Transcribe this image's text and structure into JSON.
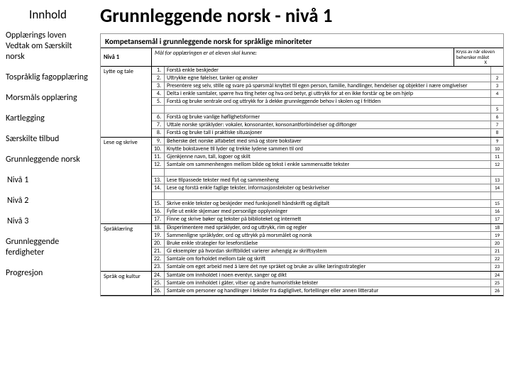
{
  "sidebar": {
    "title": "Innhold",
    "items": [
      "Opplærings loven",
      "Vedtak om Særskilt norsk",
      "Tospråklig fagopplæring",
      "Morsmåls opplæring",
      "Kartlegging",
      "Særskilte tilbud",
      "Grunnleggende norsk",
      "Nivå 1",
      "Nivå 2",
      "Nivå 3",
      "Grunnleggende ferdigheter",
      "Progresjon"
    ]
  },
  "main": {
    "title": "Grunnleggende norsk - nivå 1",
    "doc_title": "Kompetansemål i grunnleggende norsk for språklige minoriteter",
    "level_label": "Nivå 1",
    "goal_text": "Mål for opplæringen er at eleven skal kunne:",
    "mark_label": "Kryss av når eleven behersker målet",
    "mark_x": "X",
    "sections": [
      {
        "label": "Lytte og tale",
        "items": [
          {
            "n": "1.",
            "t": "Forstå enkle beskjeder"
          },
          {
            "n": "2.",
            "t": "Uttrykke egne følelser, tanker og ønsker",
            "b": "2"
          },
          {
            "n": "3.",
            "t": "Presentere seg selv, stille og svare på spørsmål knyttet til egen person, familie, handlinger, hendelser og objekter i nære omgivelser",
            "b": "3"
          },
          {
            "n": "4.",
            "t": "Delta i enkle samtaler, spørre hva ting heter og hva ord betyr, gi uttrykk for at en ikke forstår og be om hjelp",
            "b": "4"
          },
          {
            "n": "5.",
            "t": "Forstå og bruke sentrale ord og uttrykk for å dekke grunnleggende behov i skolen og i fritiden"
          },
          {
            "n": "",
            "t": "",
            "b": "5"
          },
          {
            "n": "6.",
            "t": "Forstå og bruke vanlige høflighetsformer",
            "b": "6"
          },
          {
            "n": "7.",
            "t": "Uttale norske språklyder: vokaler, konsonanter, konsonantforbindelser og diftonger",
            "b": "7"
          },
          {
            "n": "8.",
            "t": "Forstå og bruke tall i praktiske situasjoner",
            "b": "8"
          }
        ]
      },
      {
        "label": "Lese og skrive",
        "items": [
          {
            "n": "9.",
            "t": "Beherske det norske alfabetet med små og store bokstaver",
            "b": "9"
          },
          {
            "n": "10.",
            "t": "Knytte bokstavene til lyder og trekke lydene sammen til ord",
            "b": "10"
          },
          {
            "n": "11.",
            "t": "Gjenkjenne navn, tall, logoer og skilt",
            "b": "11"
          },
          {
            "n": "12.",
            "t": "Samtale om sammenhengen mellom bilde og tekst i enkle sammensatte tekster",
            "b": "12"
          },
          {
            "n": "",
            "t": "",
            "b": ""
          },
          {
            "n": "13.",
            "t": "Lese tilpassede tekster med flyt og sammenheng",
            "b": "13"
          },
          {
            "n": "14.",
            "t": "Lese og forstå enkle faglige tekster, informasjonstekster og beskrivelser",
            "b": "14"
          },
          {
            "n": "",
            "t": "",
            "b": ""
          },
          {
            "n": "15.",
            "t": "Skrive enkle tekster og beskjeder med funksjonell håndskrift og digitalt",
            "b": "15"
          },
          {
            "n": "16.",
            "t": "Fylle ut enkle skjemaer med personlige opplysninger",
            "b": "16"
          },
          {
            "n": "17.",
            "t": "Finne og skrive bøker og tekster på biblioteket og internett",
            "b": "17"
          }
        ]
      },
      {
        "label": "Språklæring",
        "items": [
          {
            "n": "18.",
            "t": "Eksperimentere med språklyder, ord og uttrykk, rim og regler",
            "b": "18"
          },
          {
            "n": "19.",
            "t": "Sammenligne språklyder, ord og uttrykk på morsmålet og norsk",
            "b": "19"
          },
          {
            "n": "20.",
            "t": "Bruke enkle strategier for leseforståelse",
            "b": "20"
          },
          {
            "n": "21.",
            "t": "Gi eksempler på hvordan skriftbildet varierer avhengig av skriftsystem",
            "b": "21"
          },
          {
            "n": "22.",
            "t": "Samtale om forholdet mellom tale og skrift",
            "b": "22"
          },
          {
            "n": "23.",
            "t": "Samtale om eget arbeid med å lære det nye språket og bruke av ulike læringsstrategier",
            "b": "23"
          }
        ]
      },
      {
        "label": "Språk og kultur",
        "items": [
          {
            "n": "24.",
            "t": "Samtale om innholdet i noen eventyr, sanger og dikt",
            "b": "24"
          },
          {
            "n": "25.",
            "t": "Samtale om innholdet i gåter, vitser og andre humoristiske tekster",
            "b": "25"
          },
          {
            "n": "26.",
            "t": "Samtale om personer og handlinger i tekster fra dagliglivet, fortellinger eller annen litteratur",
            "b": "26"
          }
        ]
      }
    ]
  }
}
